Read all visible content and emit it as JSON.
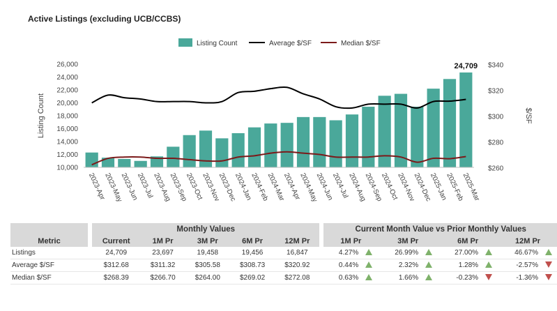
{
  "title": "Active Listings (excluding UCB/CCBS)",
  "chart_data": {
    "type": "bar",
    "categories": [
      "2023-Apr",
      "2023-May",
      "2023-Jun",
      "2023-Jul",
      "2023-Aug",
      "2023-Sep",
      "2023-Oct",
      "2023-Nov",
      "2023-Dec",
      "2024-Jan",
      "2024-Feb",
      "2024-Mar",
      "2024-Apr",
      "2024-May",
      "2024-Jun",
      "2024-Jul",
      "2024-Aug",
      "2024-Sep",
      "2024-Oct",
      "2024-Nov",
      "2024-Dec",
      "2025-Jan",
      "2025-Feb",
      "2025-Mar"
    ],
    "series": [
      {
        "name": "Listing Count",
        "type": "bar",
        "axis": "left",
        "color": "#4aa89a",
        "values": [
          12300,
          11500,
          11300,
          11000,
          11700,
          13200,
          15000,
          15700,
          14500,
          15300,
          16200,
          16800,
          16900,
          17800,
          17800,
          17300,
          18200,
          19400,
          21100,
          21400,
          19400,
          22200,
          23697,
          24709
        ]
      },
      {
        "name": "Average $/SF",
        "type": "line",
        "axis": "right",
        "color": "#000000",
        "values": [
          310,
          316,
          314,
          313,
          311,
          311,
          311,
          310,
          311,
          318,
          319,
          321,
          322,
          317,
          313,
          307,
          306,
          309,
          309,
          309,
          306,
          311,
          311.32,
          312.68
        ]
      },
      {
        "name": "Median $/SF",
        "type": "line",
        "axis": "right",
        "color": "#7b1a1a",
        "values": [
          262,
          267,
          268,
          268,
          267,
          267,
          266,
          265,
          265,
          268,
          269,
          271,
          272,
          271,
          270,
          268,
          268,
          268,
          269,
          268,
          264,
          267,
          266.7,
          268.39
        ]
      }
    ],
    "ylabel": "Listing Count",
    "y2label": "$/SF",
    "ylim": [
      10000,
      26000
    ],
    "yticks": [
      "10,000",
      "12,000",
      "14,000",
      "16,000",
      "18,000",
      "20,000",
      "22,000",
      "24,000",
      "26,000"
    ],
    "y2lim": [
      260,
      340
    ],
    "y2ticks": [
      "$260",
      "$280",
      "$300",
      "$320",
      "$340"
    ],
    "data_label": "24,709",
    "legend": "top-center"
  },
  "table": {
    "group_monthly": "Monthly Values",
    "group_compare": "Current Month Value vs Prior Monthly Values",
    "headers": {
      "metric": "Metric",
      "current": "Current",
      "m1": "1M Pr",
      "m3": "3M Pr",
      "m6": "6M Pr",
      "m12": "12M Pr",
      "c1": "1M Pr",
      "c3": "3M Pr",
      "c6": "6M Pr",
      "c12": "12M Pr"
    },
    "rows": [
      {
        "metric": "Listings",
        "current": "24,709",
        "m1": "23,697",
        "m3": "19,458",
        "m6": "19,456",
        "m12": "16,847",
        "c1": "4.27%",
        "c1d": "up",
        "c3": "26.99%",
        "c3d": "up",
        "c6": "27.00%",
        "c6d": "up",
        "c12": "46.67%",
        "c12d": "up"
      },
      {
        "metric": "Average $/SF",
        "current": "$312.68",
        "m1": "$311.32",
        "m3": "$305.58",
        "m6": "$308.73",
        "m12": "$320.92",
        "c1": "0.44%",
        "c1d": "up",
        "c3": "2.32%",
        "c3d": "up",
        "c6": "1.28%",
        "c6d": "up",
        "c12": "-2.57%",
        "c12d": "down"
      },
      {
        "metric": "Median $/SF",
        "current": "$268.39",
        "m1": "$266.70",
        "m3": "$264.00",
        "m6": "$269.02",
        "m12": "$272.08",
        "c1": "0.63%",
        "c1d": "up",
        "c3": "1.66%",
        "c3d": "up",
        "c6": "-0.23%",
        "c6d": "down",
        "c12": "-1.36%",
        "c12d": "down"
      }
    ]
  }
}
